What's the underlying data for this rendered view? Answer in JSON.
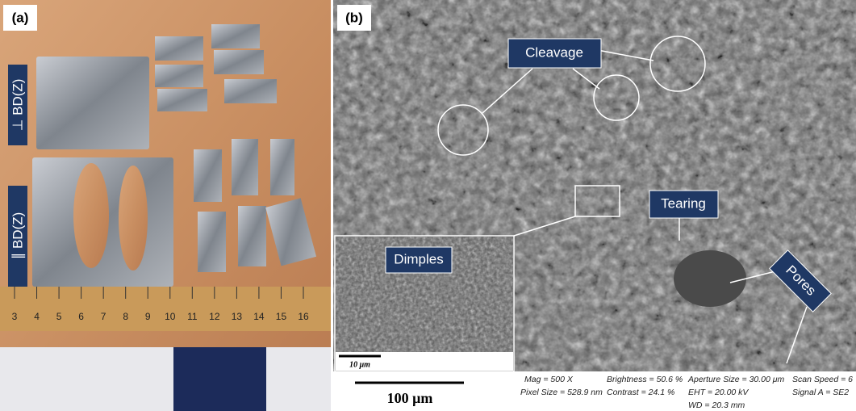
{
  "panel_a": {
    "label": "(a)",
    "perpendicular_label": "⊥ BD(Z)",
    "parallel_label": "∥ BD(Z)",
    "ruler_numbers": [
      "3",
      "4",
      "5",
      "6",
      "7",
      "8",
      "9",
      "10",
      "11",
      "12",
      "13",
      "14",
      "15",
      "16"
    ]
  },
  "panel_b": {
    "label": "(b)",
    "cleavage": "Cleavage",
    "tearing": "Tearing",
    "pores": "Pores",
    "inset": {
      "label": "Dimples",
      "scale_bar": "10 μm"
    },
    "scale_bar": "100 μm",
    "info": {
      "mag": "Mag =  500 X",
      "pixel_size": "Pixel Size = 528.9 nm",
      "brightness": "Brightness = 50.6 %",
      "contrast": "Contrast =  24.1 %",
      "aperture": "Aperture Size = 30.00 μm",
      "eht": "EHT = 20.00 kV",
      "wd": "WD = 20.3 mm",
      "scan_speed": "Scan Speed = 6",
      "signal": "Signal A = SE2"
    }
  }
}
